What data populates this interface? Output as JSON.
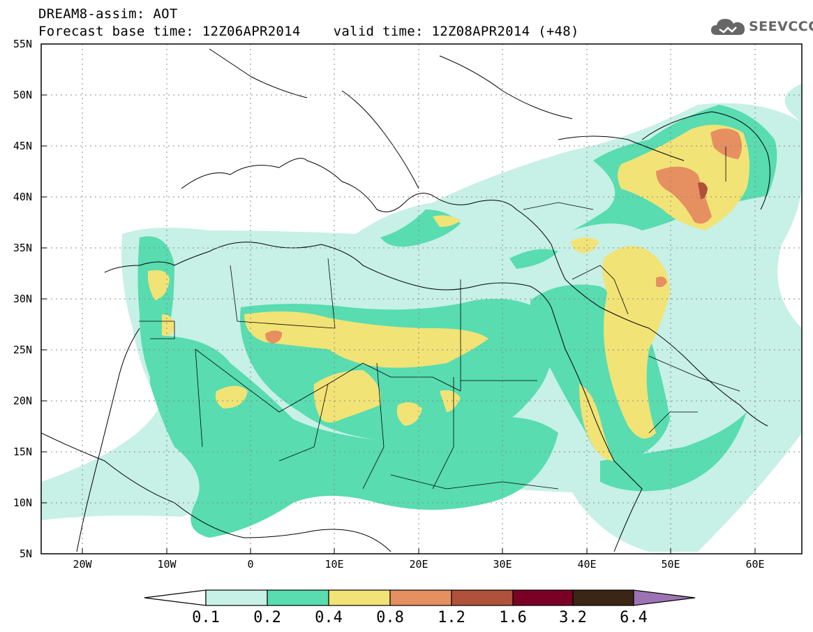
{
  "header": {
    "line1": "DREAM8-assim: AOT",
    "line2": "Forecast base time: 12Z06APR2014    valid time: 12Z08APR2014 (+48)"
  },
  "logo": {
    "text": "SEEVCCC",
    "icon": "cloud-icon"
  },
  "map": {
    "projection": "cylindrical-equidistant",
    "lon_range": [
      -25,
      65
    ],
    "lat_range": [
      5,
      55
    ],
    "lat_labels": [
      "55N",
      "50N",
      "45N",
      "40N",
      "35N",
      "30N",
      "25N",
      "20N",
      "15N",
      "10N",
      "5N"
    ],
    "lon_labels": [
      "20W",
      "10W",
      "0",
      "10E",
      "20E",
      "30E",
      "40E",
      "50E",
      "60E"
    ],
    "gridlines": "dotted"
  },
  "colorbar": {
    "labels": [
      "0.1",
      "0.2",
      "0.4",
      "0.8",
      "1.2",
      "1.6",
      "3.2",
      "6.4"
    ],
    "colors": [
      "#ffffff",
      "#c7f0e6",
      "#58dcb0",
      "#f2e377",
      "#e68f61",
      "#b0513b",
      "#7a0026",
      "#3b2514",
      "#9c74b3"
    ]
  },
  "colors": {
    "c_01_02": "#c7f0e6",
    "c_02_04": "#58dcb0",
    "c_04_08": "#f2e377",
    "c_08_12": "#e68f61",
    "c_12_16": "#b0513b"
  }
}
